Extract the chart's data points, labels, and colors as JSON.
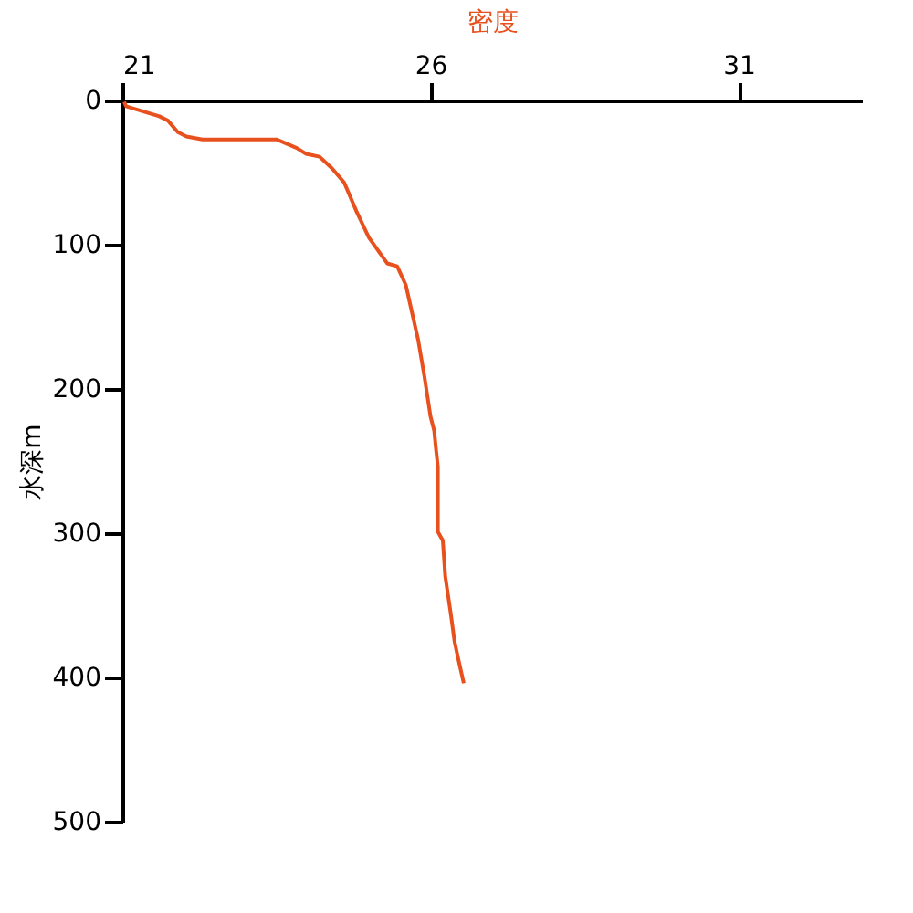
{
  "chart_data": {
    "type": "line",
    "xlabel": "密度",
    "ylabel": "水深m",
    "xlim": [
      21,
      33
    ],
    "xticks": [
      21,
      26,
      31
    ],
    "ylim": [
      500,
      0
    ],
    "yticks": [
      0,
      100,
      200,
      300,
      400,
      500
    ],
    "grid": false,
    "legend": false,
    "marker": "none",
    "line_style": "solid",
    "series": [
      {
        "color": "#e8501e",
        "x": [
          21.03,
          21.06,
          21.6,
          21.74,
          21.9,
          22.04,
          22.3,
          23.5,
          23.83,
          23.98,
          24.2,
          24.4,
          24.6,
          24.8,
          25.0,
          25.3,
          25.46,
          25.6,
          25.7,
          25.8,
          25.9,
          26.0,
          26.06,
          26.09,
          26.12,
          26.12,
          26.2,
          26.24,
          26.33,
          26.39,
          26.45,
          26.54
        ],
        "values": [
          1,
          4,
          11,
          14,
          22,
          25,
          27,
          27,
          33,
          37,
          39,
          47,
          57,
          77,
          95,
          113,
          115,
          128,
          147,
          166,
          191,
          219,
          229,
          242,
          254,
          299,
          305,
          330,
          356,
          375,
          387,
          404
        ]
      }
    ]
  }
}
